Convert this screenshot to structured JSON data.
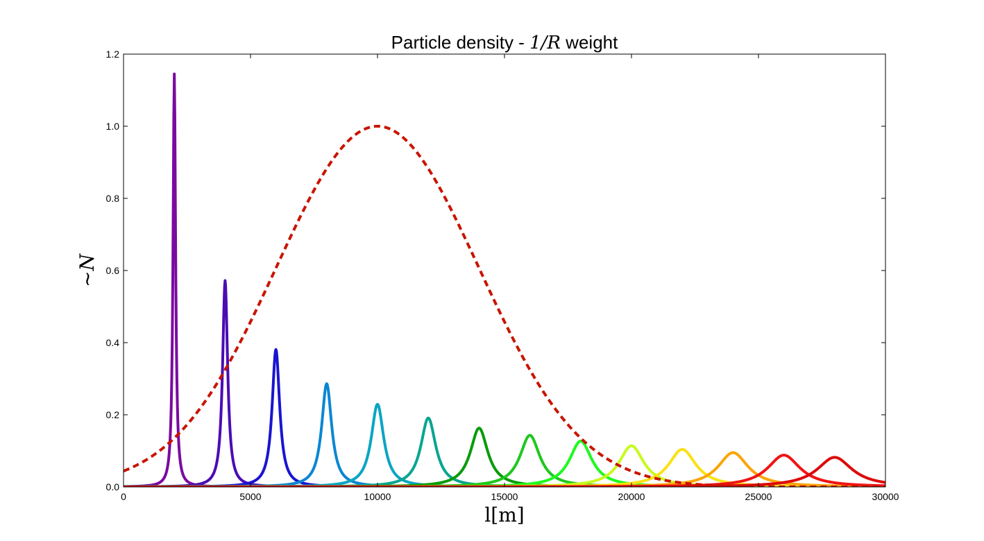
{
  "chart_data": {
    "type": "line",
    "title_prefix": "Particle density - ",
    "title_math": "1/R",
    "title_suffix": " weight",
    "xlabel": "l[m]",
    "ylabel": "~N",
    "xlim": [
      0,
      30000
    ],
    "ylim": [
      0,
      1.2
    ],
    "xticks": [
      0,
      5000,
      10000,
      15000,
      20000,
      25000,
      30000
    ],
    "yticks": [
      0.0,
      0.2,
      0.4,
      0.6,
      0.8,
      1.0,
      1.2
    ],
    "xtick_labels": [
      "0",
      "5000",
      "10000",
      "15000",
      "20000",
      "25000",
      "30000"
    ],
    "ytick_labels": [
      "0.0",
      "0.2",
      "0.4",
      "0.6",
      "0.8",
      "1.0",
      "1.2"
    ],
    "grid": false,
    "legend": "none",
    "series": [
      {
        "type": "peak",
        "x_center": 2000,
        "peak": 1.145,
        "color": "#7b0aa0"
      },
      {
        "type": "peak",
        "x_center": 4000,
        "peak": 0.572,
        "color": "#4b0cb4"
      },
      {
        "type": "peak",
        "x_center": 6000,
        "peak": 0.381,
        "color": "#1a14d2"
      },
      {
        "type": "peak",
        "x_center": 8000,
        "peak": 0.286,
        "color": "#0a87d2"
      },
      {
        "type": "peak",
        "x_center": 10000,
        "peak": 0.229,
        "color": "#0aa5c3"
      },
      {
        "type": "peak",
        "x_center": 12000,
        "peak": 0.191,
        "color": "#0aa591"
      },
      {
        "type": "peak",
        "x_center": 14000,
        "peak": 0.163,
        "color": "#0a9b0a"
      },
      {
        "type": "peak",
        "x_center": 16000,
        "peak": 0.143,
        "color": "#1ec81e"
      },
      {
        "type": "peak",
        "x_center": 18000,
        "peak": 0.127,
        "color": "#1efa1e"
      },
      {
        "type": "peak",
        "x_center": 20000,
        "peak": 0.114,
        "color": "#c8fa1e"
      },
      {
        "type": "peak",
        "x_center": 22000,
        "peak": 0.104,
        "color": "#fae114"
      },
      {
        "type": "peak",
        "x_center": 24000,
        "peak": 0.095,
        "color": "#faa50a"
      },
      {
        "type": "peak",
        "x_center": 26000,
        "peak": 0.088,
        "color": "#f01414"
      },
      {
        "type": "peak",
        "x_center": 28000,
        "peak": 0.082,
        "color": "#dc0a0a"
      },
      {
        "type": "gaussian",
        "mean": 10000,
        "sigma": 4000,
        "peak": 1.0,
        "color": "#c81400",
        "dashed": true
      }
    ]
  }
}
